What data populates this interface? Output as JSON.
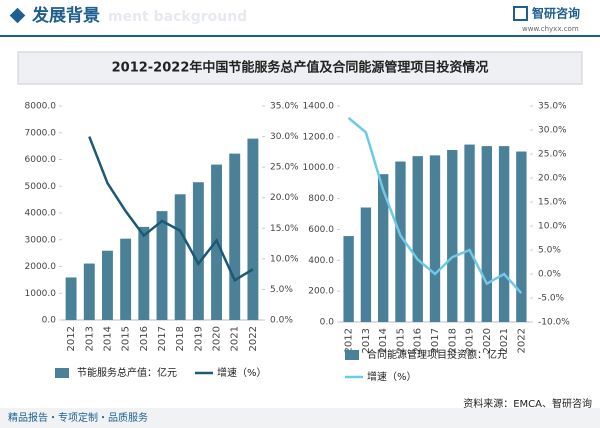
{
  "header": {
    "title": "发展背景",
    "subtitle": "ment background",
    "brand": "智研咨询",
    "url": "www.chyxx.com"
  },
  "title": "2012-2022年中国节能服务总产值及合同能源管理项目投资情况",
  "chart_data": [
    {
      "type": "bar",
      "categories": [
        "2012",
        "2013",
        "2014",
        "2015",
        "2016",
        "2017",
        "2018",
        "2019",
        "2020",
        "2021",
        "2022"
      ],
      "series": [
        {
          "name": "节能服务总产值：亿元",
          "color": "#4a8098",
          "values": [
            1590,
            2110,
            2590,
            3040,
            3480,
            4070,
            4700,
            5150,
            5810,
            6220,
            6780
          ]
        },
        {
          "name": "增速（%）",
          "color": "#1b5a75",
          "axis": "y2",
          "type": "line",
          "values": [
            null,
            30.0,
            22.4,
            17.8,
            13.8,
            16.2,
            14.6,
            9.2,
            13.0,
            6.5,
            8.3
          ]
        }
      ],
      "ylim": [
        0,
        8000
      ],
      "yticks": [
        {
          "value": 0,
          "label": "0.0"
        },
        {
          "value": 1000,
          "label": "1000.0"
        },
        {
          "value": 2000,
          "label": "2000.0"
        },
        {
          "value": 3000,
          "label": "3000.0"
        },
        {
          "value": 4000,
          "label": "4000.0"
        },
        {
          "value": 5000,
          "label": "5000.0"
        },
        {
          "value": 6000,
          "label": "6000.0"
        },
        {
          "value": 7000,
          "label": "7000.0"
        },
        {
          "value": 8000,
          "label": "8000.0"
        }
      ],
      "y2lim": [
        0,
        35
      ],
      "y2ticks": [
        {
          "value": 0,
          "label": "0.0%"
        },
        {
          "value": 5,
          "label": "5.0%"
        },
        {
          "value": 10,
          "label": "10.0%"
        },
        {
          "value": 15,
          "label": "15.0%"
        },
        {
          "value": 20,
          "label": "20.0%"
        },
        {
          "value": 25,
          "label": "25.0%"
        },
        {
          "value": 30,
          "label": "30.0%"
        },
        {
          "value": 35,
          "label": "35.0%"
        }
      ]
    },
    {
      "type": "bar",
      "categories": [
        "2012",
        "2013",
        "2014",
        "2015",
        "2016",
        "2017",
        "2018",
        "2019",
        "2020",
        "2021",
        "2022"
      ],
      "series": [
        {
          "name": "合同能源管理项目投资额：亿元",
          "color": "#4a8098",
          "values": [
            557,
            742,
            958,
            1040,
            1075,
            1080,
            1115,
            1150,
            1140,
            1140,
            1105
          ]
        },
        {
          "name": "增速（%）",
          "color": "#6fc8e8",
          "axis": "y2",
          "type": "line",
          "values": [
            32.5,
            29.5,
            17.5,
            8.0,
            3.0,
            0.0,
            3.5,
            5.0,
            -2.0,
            0.0,
            -4.0
          ]
        }
      ],
      "ylim": [
        0,
        1400
      ],
      "yticks": [
        {
          "value": 0,
          "label": "0.0"
        },
        {
          "value": 200,
          "label": "200.0"
        },
        {
          "value": 400,
          "label": "400.0"
        },
        {
          "value": 600,
          "label": "600.0"
        },
        {
          "value": 800,
          "label": "800.0"
        },
        {
          "value": 1000,
          "label": "1000.0"
        },
        {
          "value": 1200,
          "label": "1200.0"
        },
        {
          "value": 1400,
          "label": "1400.0"
        }
      ],
      "y2lim": [
        -10,
        35
      ],
      "y2ticks": [
        {
          "value": -10,
          "label": "-10.0%"
        },
        {
          "value": -5,
          "label": "-5.0%"
        },
        {
          "value": 0,
          "label": "0.0%"
        },
        {
          "value": 5,
          "label": "5.0%"
        },
        {
          "value": 10,
          "label": "10.0%"
        },
        {
          "value": 15,
          "label": "15.0%"
        },
        {
          "value": 20,
          "label": "20.0%"
        },
        {
          "value": 25,
          "label": "25.0%"
        },
        {
          "value": 30,
          "label": "30.0%"
        },
        {
          "value": 35,
          "label": "35.0%"
        }
      ]
    }
  ],
  "footer": {
    "slogan": "精品报告・专项定制・品质服务",
    "source": "资料来源：EMCA、智研咨询"
  }
}
